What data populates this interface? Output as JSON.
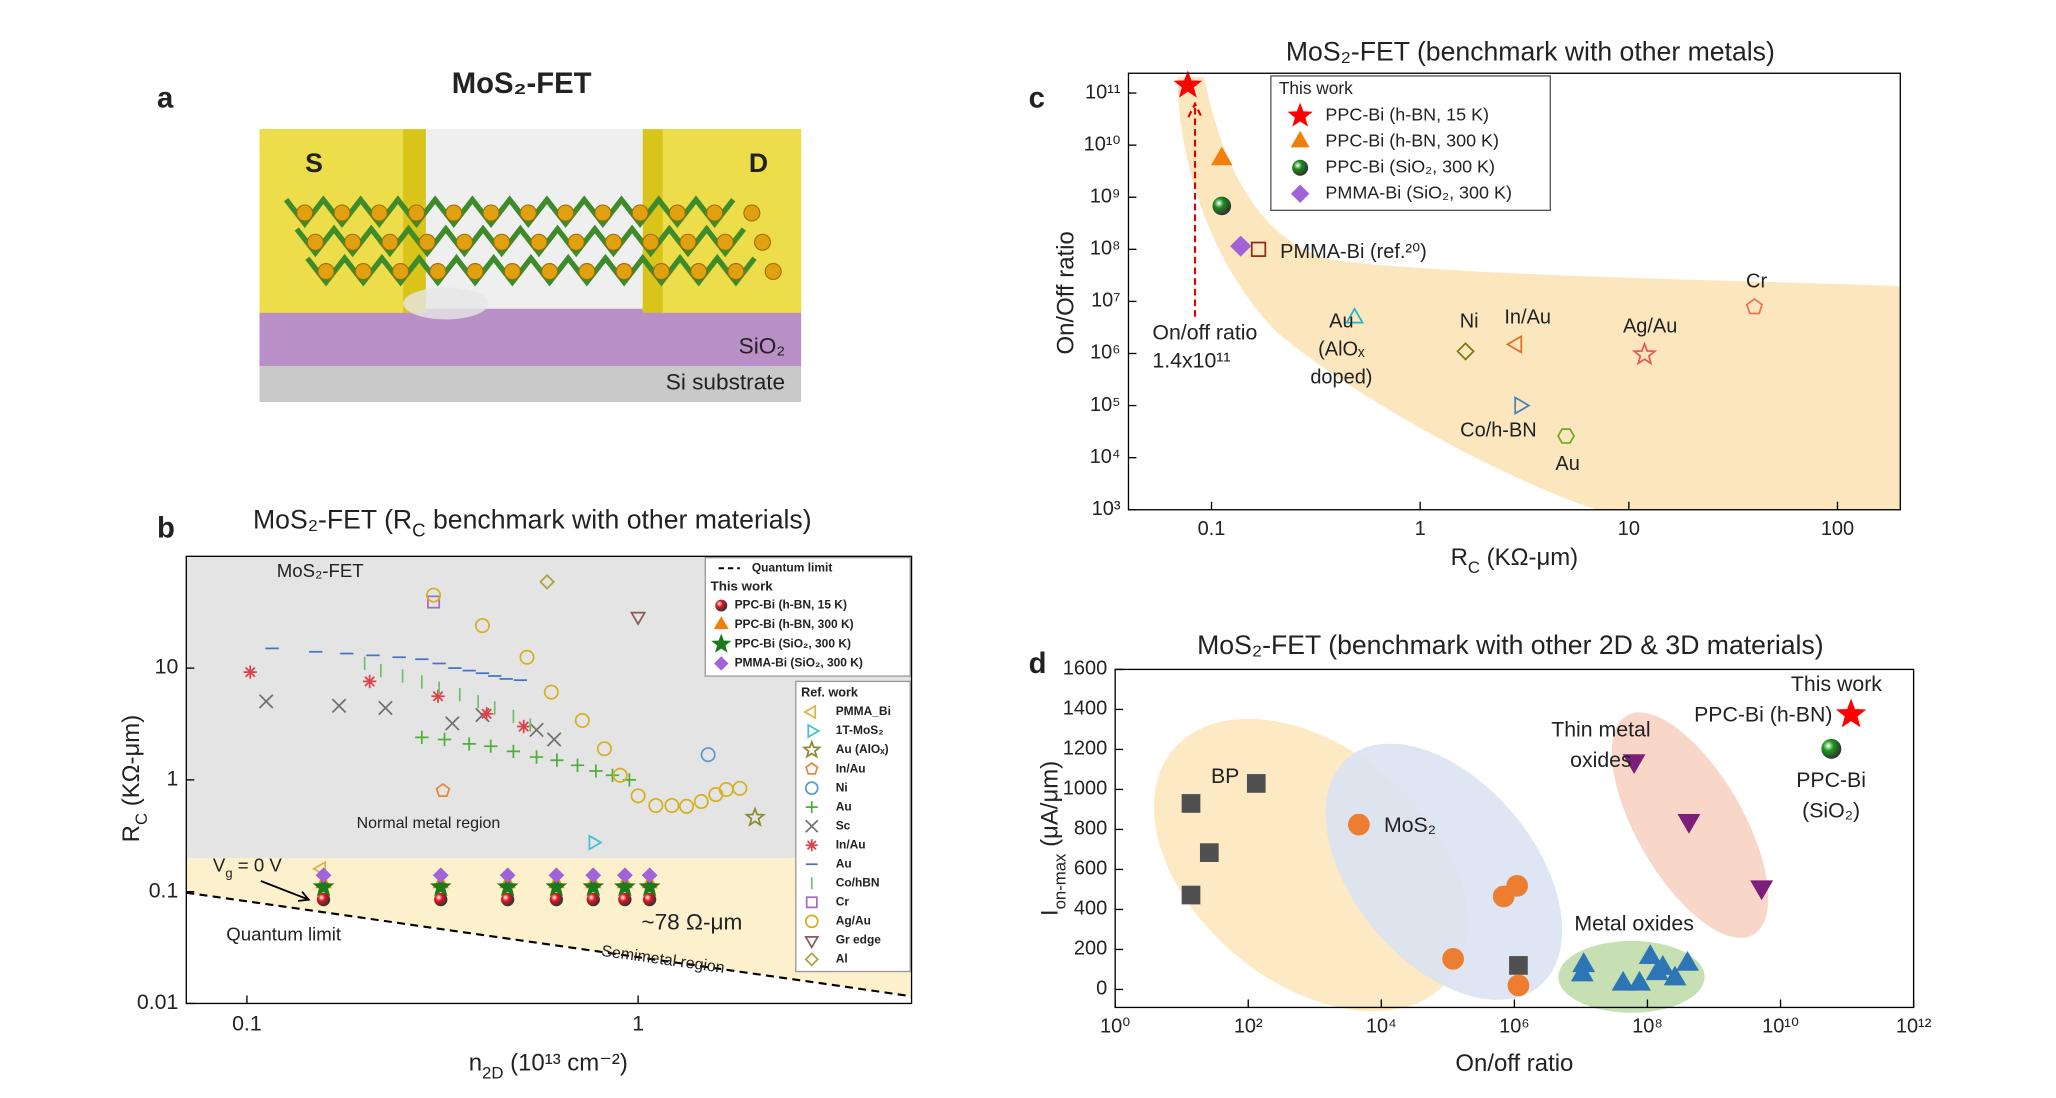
{
  "panel_a": {
    "label": "a",
    "title": "MoS₂-FET",
    "source": "S",
    "drain": "D",
    "oxide": "SiO₂",
    "substrate": "Si substrate"
  },
  "chart_data": [
    {
      "type": "scatter",
      "panel_label": "b",
      "title": [
        "MoS₂-FET (R",
        "C",
        " benchmark with other materials)"
      ],
      "x_label": [
        "n",
        "2D",
        " (10¹³ cm⁻²)"
      ],
      "y_label": [
        "R",
        "C",
        " (KΩ-μm)"
      ],
      "log_x": true,
      "log_y": true,
      "xlim": [
        0.07,
        5
      ],
      "ylim": [
        0.01,
        100
      ],
      "xticks": [
        0.1,
        1
      ],
      "yticks": [
        0.01,
        0.1,
        1,
        10
      ],
      "semimetal_boundary": 0.2,
      "region_label": "MoS₂-FET",
      "normal_label": "Normal metal region",
      "semimetal_label": "Semimetal region",
      "quantum_label": "Quantum limit",
      "rc_label": "~78 Ω-μm",
      "vg_label": [
        "V",
        "g",
        " = 0 V"
      ],
      "quantum_limit": {
        "name": "Quantum limit",
        "x": [
          0.07,
          5
        ],
        "values": [
          0.098,
          0.0116
        ]
      },
      "this_work": {
        "title": "This work",
        "series": [
          {
            "name": "PPC-Bi (h-BN, 15 K)",
            "marker": "ball",
            "color": "#e8141b",
            "filled": true,
            "x": [
              0.157,
              0.313,
              0.464,
              0.618,
              0.768,
              0.925,
              1.07
            ],
            "values": [
              0.085,
              0.085,
              0.085,
              0.085,
              0.085,
              0.085,
              0.085
            ]
          },
          {
            "name": "PPC-Bi (h-BN, 300 K)",
            "marker": "triangle-up",
            "color": "#f07f0b",
            "filled": true,
            "x": [
              0.157,
              0.313,
              0.464,
              0.618,
              0.768,
              0.925,
              1.07
            ],
            "values": [
              0.118,
              0.118,
              0.118,
              0.118,
              0.118,
              0.118,
              0.118
            ]
          },
          {
            "name": "PPC-Bi (SiO₂, 300 K)",
            "marker": "star",
            "color": "#1b7a1b",
            "filled": true,
            "x": [
              0.157,
              0.313,
              0.464,
              0.618,
              0.768,
              0.925,
              1.07
            ],
            "values": [
              0.11,
              0.11,
              0.11,
              0.11,
              0.11,
              0.11,
              0.11
            ]
          },
          {
            "name": "PMMA-Bi (SiO₂, 300 K)",
            "marker": "diamond",
            "color": "#a064d8",
            "filled": true,
            "x": [
              0.157,
              0.313,
              0.464,
              0.618,
              0.768,
              0.925,
              1.07
            ],
            "values": [
              0.14,
              0.14,
              0.14,
              0.14,
              0.14,
              0.14,
              0.14
            ]
          }
        ]
      },
      "ref_work": {
        "title": "Ref. work",
        "series": [
          {
            "name": "PMMA_Bi",
            "marker": "triangle-left",
            "color": "#d9b44a",
            "filled": false,
            "x": [
              0.155
            ],
            "values": [
              0.16
            ]
          },
          {
            "name": "1T-MoS₂",
            "marker": "triangle-right",
            "color": "#3ec0d8",
            "filled": false,
            "x": [
              0.768
            ],
            "values": [
              0.275
            ]
          },
          {
            "name": "Au (AlOₓ)",
            "marker": "star",
            "color": "#8a8a30",
            "filled": false,
            "x": [
              1.99
            ],
            "values": [
              0.46
            ]
          },
          {
            "name": "In/Au",
            "marker": "pentagon",
            "color": "#e08a40",
            "filled": false,
            "x": [
              0.317
            ],
            "values": [
              0.8
            ]
          },
          {
            "name": "Ni",
            "marker": "circle",
            "color": "#5b9bd5",
            "filled": false,
            "x": [
              1.51
            ],
            "values": [
              1.68
            ]
          },
          {
            "name": "Au",
            "marker": "plus",
            "color": "#4caf3a",
            "filled": false,
            "x": [
              0.28,
              0.32,
              0.37,
              0.42,
              0.48,
              0.55,
              0.62,
              0.7,
              0.78,
              0.86,
              0.95
            ],
            "values": [
              2.4,
              2.3,
              2.1,
              2.0,
              1.8,
              1.6,
              1.5,
              1.35,
              1.2,
              1.1,
              1.0
            ]
          },
          {
            "name": "Sc",
            "marker": "x",
            "color": "#707070",
            "filled": false,
            "x": [
              0.112,
              0.172,
              0.226,
              0.335,
              0.4,
              0.55,
              0.61
            ],
            "values": [
              5.04,
              4.6,
              4.4,
              3.2,
              3.8,
              2.8,
              2.3
            ]
          },
          {
            "name": "In/Au",
            "marker": "asterisk",
            "color": "#e0404a",
            "filled": false,
            "x": [
              0.102,
              0.206,
              0.308,
              0.41,
              0.51
            ],
            "values": [
              9.2,
              7.6,
              5.6,
              3.9,
              3.0
            ]
          },
          {
            "name": "Au",
            "marker": "dash",
            "color": "#4472c4",
            "filled": false,
            "x": [
              0.116,
              0.15,
              0.18,
              0.21,
              0.245,
              0.28,
              0.31,
              0.34,
              0.37,
              0.4,
              0.43,
              0.46,
              0.5
            ],
            "values": [
              15,
              14,
              13.5,
              13,
              12.5,
              12,
              11,
              10,
              9.5,
              9,
              8.5,
              8,
              7.8
            ]
          },
          {
            "name": "Co/hBN",
            "marker": "vline",
            "color": "#70c070",
            "filled": false,
            "x": [
              0.2,
              0.22,
              0.25,
              0.28,
              0.31,
              0.35,
              0.39,
              0.43,
              0.48,
              0.53
            ],
            "values": [
              11,
              9.5,
              8.5,
              7.5,
              6.6,
              5.8,
              5.0,
              4.4,
              3.7,
              3.1
            ]
          },
          {
            "name": "Cr",
            "marker": "square",
            "color": "#a070c0",
            "filled": false,
            "x": [
              0.3
            ],
            "values": [
              39
            ]
          },
          {
            "name": "Ag/Au",
            "marker": "circle",
            "color": "#d4b020",
            "filled": false,
            "x": [
              0.3,
              0.4,
              0.52,
              0.6,
              0.72,
              0.82,
              0.9,
              1.0,
              1.11,
              1.22,
              1.33,
              1.45,
              1.58,
              1.68,
              1.82
            ],
            "values": [
              45,
              24,
              12.5,
              6.1,
              3.4,
              1.9,
              1.1,
              0.72,
              0.59,
              0.59,
              0.58,
              0.64,
              0.74,
              0.82,
              0.84
            ]
          },
          {
            "name": "Gr edge",
            "marker": "triangle-down",
            "color": "#8b5a5a",
            "filled": false,
            "x": [
              1.0
            ],
            "values": [
              29
            ]
          },
          {
            "name": "Al",
            "marker": "diamond",
            "color": "#b0a040",
            "filled": false,
            "x": [
              0.585
            ],
            "values": [
              59
            ]
          }
        ]
      }
    },
    {
      "type": "scatter",
      "panel_label": "c",
      "title": "MoS₂-FET (benchmark with other metals)",
      "x_label": [
        "R",
        "C",
        " (KΩ-μm)"
      ],
      "y_label": "On/Off ratio",
      "log_x": true,
      "log_y": true,
      "xlim": [
        0.04,
        200
      ],
      "ylim": [
        1000,
        240000000000
      ],
      "xticks": [
        0.1,
        1,
        10,
        100
      ],
      "yticks": [
        {
          "value": 1000,
          "label": "10³"
        },
        {
          "value": 10000,
          "label": "10⁴"
        },
        {
          "value": 100000,
          "label": "10⁵"
        },
        {
          "value": 1000000,
          "label": "10⁶"
        },
        {
          "value": 10000000,
          "label": "10⁷"
        },
        {
          "value": 100000000,
          "label": "10⁸"
        },
        {
          "value": 1000000000,
          "label": "10⁹"
        },
        {
          "value": 10000000000,
          "label": "10¹⁰"
        },
        {
          "value": 100000000000,
          "label": "10¹¹"
        }
      ],
      "arrow_label": [
        "On/off ratio",
        "1.4x10¹¹"
      ],
      "this_work": {
        "title": "This work",
        "series": [
          {
            "name": "PPC-Bi (h-BN, 15 K)",
            "marker": "star",
            "color": "#ff0000",
            "filled": true,
            "x": [
              0.077
            ],
            "values": [
              140000000000
            ]
          },
          {
            "name": "PPC-Bi (h-BN, 300 K)",
            "marker": "triangle-up",
            "color": "#f07f0b",
            "filled": true,
            "x": [
              0.112
            ],
            "values": [
              5400000000
            ]
          },
          {
            "name": "PPC-Bi (SiO₂, 300 K)",
            "marker": "ball",
            "color": "#1a8a1a",
            "filled": true,
            "x": [
              0.112
            ],
            "values": [
              680000000
            ]
          },
          {
            "name": "PMMA-Bi (SiO₂, 300 K)",
            "marker": "diamond",
            "color": "#a064d8",
            "filled": true,
            "x": [
              0.138
            ],
            "values": [
              115000000
            ]
          }
        ]
      },
      "references": [
        {
          "label": "PMMA-Bi (ref.²⁰)",
          "x": 0.168,
          "value": 100000000,
          "marker": "square",
          "color": "#8b2a1a"
        },
        {
          "label": [
            "Au",
            "(AlOₓ",
            "doped)"
          ],
          "x": 0.485,
          "value": 4800000,
          "marker": "triangle-up",
          "color": "#1fb8c4"
        },
        {
          "label": "Ni",
          "x": 1.65,
          "value": 1100000,
          "marker": "diamond",
          "color": "#7a7a10"
        },
        {
          "label": "In/Au",
          "x": 2.9,
          "value": 1500000,
          "marker": "triangle-left",
          "color": "#e07020"
        },
        {
          "label": "Ag/Au",
          "x": 11.9,
          "value": 950000,
          "marker": "star",
          "color": "#e45a5a"
        },
        {
          "label": "Cr",
          "x": 40,
          "value": 7800000,
          "marker": "pentagon",
          "color": "#f07050"
        },
        {
          "label": "Co/h-BN",
          "x": 3.0,
          "value": 100000,
          "marker": "triangle-right",
          "color": "#4a7fc0"
        },
        {
          "label": "Au",
          "x": 5.0,
          "value": 26000,
          "marker": "hexagon",
          "color": "#6aaa20"
        }
      ]
    },
    {
      "type": "scatter",
      "panel_label": "d",
      "title": "MoS₂-FET (benchmark with other 2D & 3D materials)",
      "x_label": "On/off ratio",
      "y_label": [
        "I",
        "on-max",
        " (μA/μm)"
      ],
      "log_x": true,
      "log_y": false,
      "xlim": [
        1,
        1000000000000
      ],
      "ylim": [
        -90,
        1600
      ],
      "xticks": [
        {
          "value": 1,
          "label": "10⁰"
        },
        {
          "value": 100,
          "label": "10²"
        },
        {
          "value": 10000,
          "label": "10⁴"
        },
        {
          "value": 1000000,
          "label": "10⁶"
        },
        {
          "value": 100000000,
          "label": "10⁸"
        },
        {
          "value": 10000000000,
          "label": "10¹⁰"
        },
        {
          "value": 1000000000000,
          "label": "10¹²"
        }
      ],
      "yticks": [
        0,
        200,
        400,
        600,
        800,
        1000,
        1200,
        1400,
        1600
      ],
      "this_work_label": "This work",
      "series": [
        {
          "name": [
            "BP"
          ],
          "marker": "square",
          "color": "#505050",
          "filled": true,
          "x": [
            13.8,
            26,
            13.8,
            132,
            1150000
          ],
          "values": [
            930,
            684,
            472,
            1030,
            120
          ]
        },
        {
          "name": [
            "MoS₂"
          ],
          "marker": "circle",
          "color": "#ed7d31",
          "filled": true,
          "x": [
            4600,
            120000,
            690000,
            1100000,
            1150000
          ],
          "values": [
            824,
            153,
            465,
            518,
            20
          ]
        },
        {
          "name": [
            "Metal oxides"
          ],
          "marker": "triangle-up",
          "color": "#2e75b6",
          "filled": true,
          "x": [
            10500000,
            11000000,
            43000000,
            76000000,
            110000000,
            170000000,
            260000000,
            400000000,
            140000000
          ],
          "values": [
            73,
            120,
            27,
            27,
            160,
            106,
            53,
            126,
            80
          ]
        },
        {
          "name": [
            "Thin metal",
            "oxides"
          ],
          "marker": "triangle-down",
          "color": "#7b1f7b",
          "filled": true,
          "x": [
            63000000,
            420000000,
            5200000000
          ],
          "values": [
            1143,
            844,
            512
          ]
        },
        {
          "name": [
            "PPC-Bi (h-BN)"
          ],
          "marker": "star",
          "color": "#ff0000",
          "filled": true,
          "x": [
            115000000000
          ],
          "values": [
            1375
          ]
        },
        {
          "name": [
            "PPC-Bi",
            "(SiO₂)"
          ],
          "marker": "ball",
          "color": "#1a9a1a",
          "filled": true,
          "x": [
            58000000000
          ],
          "values": [
            1203
          ]
        }
      ]
    }
  ]
}
